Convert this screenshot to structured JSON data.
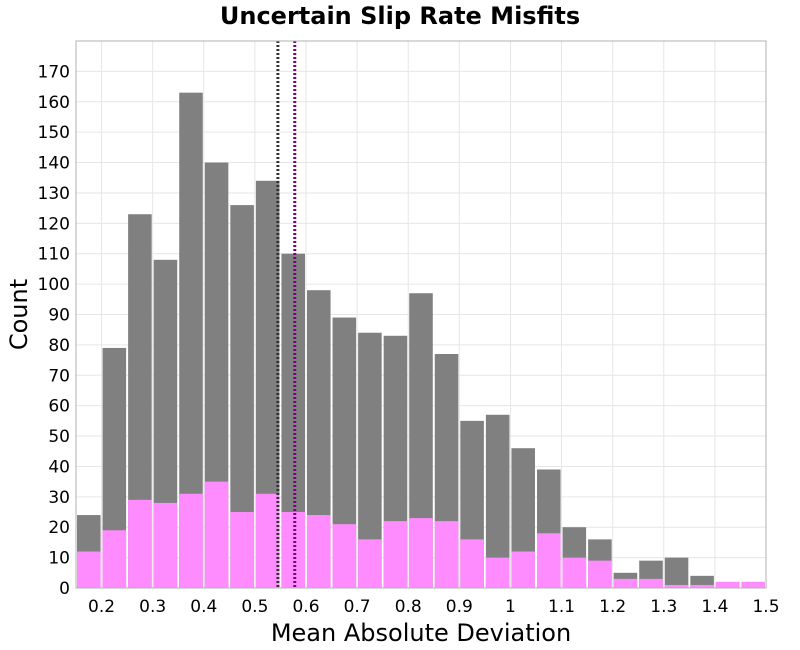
{
  "chart_data": {
    "type": "bar",
    "title": "Uncertain Slip Rate Misfits",
    "xlabel": "Mean Absolute Deviation",
    "ylabel": "Count",
    "xlim": [
      0.15,
      1.5
    ],
    "ylim": [
      0,
      180
    ],
    "xticks": [
      "0.2",
      "0.3",
      "0.4",
      "0.5",
      "0.6",
      "0.7",
      "0.8",
      "0.9",
      "1",
      "1.1",
      "1.2",
      "1.3",
      "1.4",
      "1.5"
    ],
    "yticks": [
      "0",
      "10",
      "20",
      "30",
      "40",
      "50",
      "60",
      "70",
      "80",
      "90",
      "100",
      "110",
      "120",
      "130",
      "140",
      "150",
      "160",
      "170"
    ],
    "bin_width": 0.05,
    "bin_centers": [
      0.175,
      0.225,
      0.275,
      0.325,
      0.375,
      0.425,
      0.475,
      0.525,
      0.575,
      0.625,
      0.675,
      0.725,
      0.775,
      0.825,
      0.875,
      0.925,
      0.975,
      1.025,
      1.075,
      1.125,
      1.175,
      1.225,
      1.275,
      1.325,
      1.375,
      1.425,
      1.475
    ],
    "series": [
      {
        "color": "#808080",
        "values": [
          24,
          79,
          123,
          108,
          163,
          140,
          126,
          134,
          110,
          98,
          89,
          84,
          83,
          97,
          77,
          55,
          57,
          46,
          39,
          20,
          16,
          5,
          9,
          10,
          4,
          2,
          2
        ]
      },
      {
        "color": "#ff8cff",
        "values": [
          12,
          19,
          29,
          28,
          31,
          35,
          25,
          31,
          25,
          24,
          21,
          16,
          22,
          23,
          22,
          16,
          10,
          12,
          18,
          10,
          9,
          3,
          3,
          1,
          1,
          2,
          2
        ]
      }
    ],
    "vlines": [
      {
        "x": 0.545,
        "color": "#333333"
      },
      {
        "x": 0.578,
        "color": "#800080"
      }
    ],
    "grid": true
  }
}
